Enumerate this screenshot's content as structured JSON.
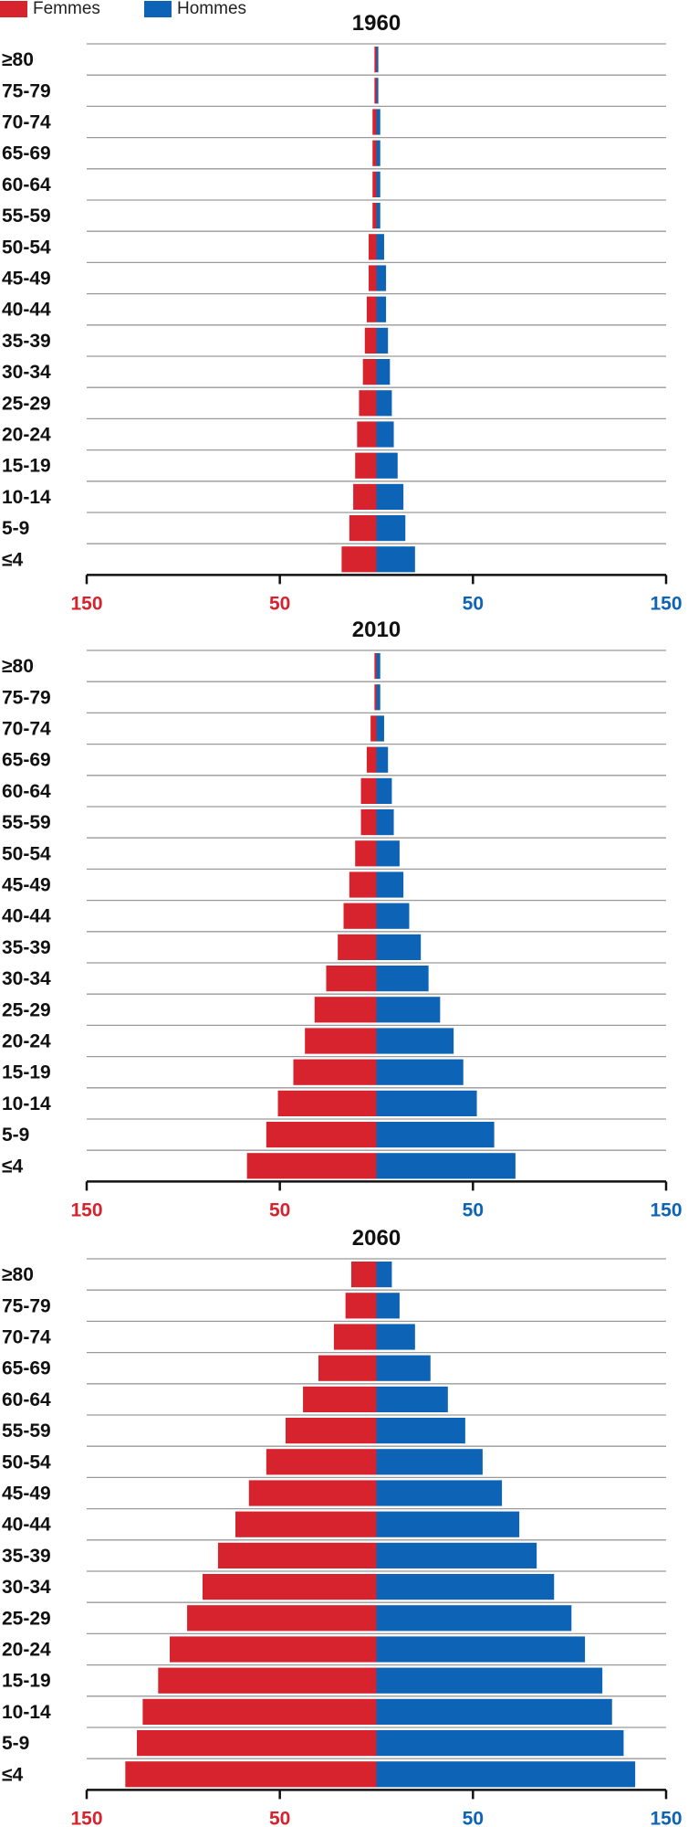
{
  "legend": [
    {
      "label": "Femmes",
      "color": "#d7232d"
    },
    {
      "label": "Hommes",
      "color": "#0d63b5"
    }
  ],
  "colors": {
    "femmes": "#d7232d",
    "hommes": "#0d63b5"
  },
  "chart_data": [
    {
      "type": "bar",
      "title": "1960",
      "categories": [
        "≥80",
        "75-79",
        "70-74",
        "65-69",
        "60-64",
        "55-59",
        "50-54",
        "45-49",
        "40-44",
        "35-39",
        "30-34",
        "25-29",
        "20-24",
        "15-19",
        "10-14",
        "5-9",
        "≤4"
      ],
      "series": [
        {
          "name": "Femmes",
          "values": [
            1,
            1,
            2,
            2,
            2,
            2,
            4,
            4,
            5,
            6,
            7,
            9,
            10,
            11,
            12,
            14,
            18
          ]
        },
        {
          "name": "Hommes",
          "values": [
            1,
            1,
            2,
            2,
            2,
            2,
            4,
            5,
            5,
            6,
            7,
            8,
            9,
            11,
            14,
            15,
            20
          ]
        }
      ],
      "xlim": [
        -150,
        150
      ],
      "tick_values": [
        -150,
        -50,
        50,
        150
      ],
      "tick_labels": [
        "150",
        "50",
        "50",
        "150"
      ]
    },
    {
      "type": "bar",
      "title": "2010",
      "categories": [
        "≥80",
        "75-79",
        "70-74",
        "65-69",
        "60-64",
        "55-59",
        "50-54",
        "45-49",
        "40-44",
        "35-39",
        "30-34",
        "25-29",
        "20-24",
        "15-19",
        "10-14",
        "5-9",
        "≤4"
      ],
      "series": [
        {
          "name": "Femmes",
          "values": [
            1,
            1,
            3,
            5,
            8,
            8,
            11,
            14,
            17,
            20,
            26,
            32,
            37,
            43,
            51,
            57,
            67
          ]
        },
        {
          "name": "Hommes",
          "values": [
            2,
            2,
            4,
            6,
            8,
            9,
            12,
            14,
            17,
            23,
            27,
            33,
            40,
            45,
            52,
            61,
            72
          ]
        }
      ],
      "xlim": [
        -150,
        150
      ],
      "tick_values": [
        -150,
        -50,
        50,
        150
      ],
      "tick_labels": [
        "150",
        "50",
        "50",
        "150"
      ]
    },
    {
      "type": "bar",
      "title": "2060",
      "categories": [
        "≥80",
        "75-79",
        "70-74",
        "65-69",
        "60-64",
        "55-59",
        "50-54",
        "45-49",
        "40-44",
        "35-39",
        "30-34",
        "25-29",
        "20-24",
        "15-19",
        "10-14",
        "5-9",
        "≤4"
      ],
      "series": [
        {
          "name": "Femmes",
          "values": [
            13,
            16,
            22,
            30,
            38,
            47,
            57,
            66,
            73,
            82,
            90,
            98,
            107,
            113,
            121,
            124,
            130
          ]
        },
        {
          "name": "Hommes",
          "values": [
            8,
            12,
            20,
            28,
            37,
            46,
            55,
            65,
            74,
            83,
            92,
            101,
            108,
            117,
            122,
            128,
            134
          ]
        }
      ],
      "xlim": [
        -150,
        150
      ],
      "tick_values": [
        -150,
        -50,
        50,
        150
      ],
      "tick_labels": [
        "150",
        "50",
        "50",
        "150"
      ]
    }
  ]
}
